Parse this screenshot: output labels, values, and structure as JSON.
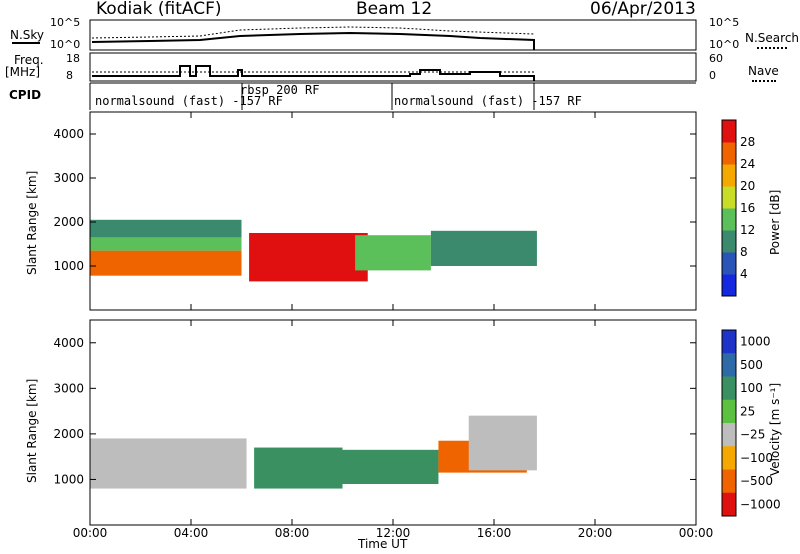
{
  "header": {
    "station": "Kodiak (fitACF)",
    "beam": "Beam 12",
    "date": "06/Apr/2013"
  },
  "aux_panels": {
    "nsky_label": "N.Sky",
    "nsky_ticks": [
      "10^5",
      "10^0"
    ],
    "nsearch_label": "N.Search",
    "nsearch_ticks": [
      "10^5",
      "10^0"
    ],
    "freq_label_line1": "Freq.",
    "freq_label_line2": "[MHz]",
    "freq_ticks": [
      "18",
      "8"
    ],
    "nave_label": "Nave",
    "nave_ticks": [
      "60",
      "0"
    ],
    "cpid_label": "CPID",
    "cpid_segments": [
      "normalsound (fast) -157 RF",
      "rbsp 200 RF",
      "normalsound (fast) -157 RF"
    ],
    "cpid_segment_hours": [
      [
        0,
        6.0
      ],
      [
        6.0,
        12.0
      ],
      [
        12.0,
        17.7
      ]
    ]
  },
  "chart_data": [
    {
      "type": "heatmap",
      "panel": "power",
      "xlabel": "Time UT",
      "ylabel": "Slant Range [km]",
      "xlim": [
        0,
        24
      ],
      "ylim": [
        0,
        4500
      ],
      "yticks": [
        1000,
        2000,
        3000,
        4000
      ],
      "xticks": [
        "00:00",
        "04:00",
        "08:00",
        "12:00",
        "16:00",
        "20:00",
        "00:00"
      ],
      "colorbar_label": "Power [dB]",
      "colorbar_ticks": [
        4,
        8,
        12,
        16,
        20,
        24,
        28
      ],
      "colorbar_range": [
        0,
        32
      ],
      "colorbar_colors": [
        "#1428e0",
        "#2a54b8",
        "#3b8a6e",
        "#5bbf5a",
        "#c8dc28",
        "#f5a800",
        "#f06400",
        "#e01010"
      ],
      "data_end_hour": 17.7,
      "regions": [
        {
          "t": [
            0.0,
            6.0
          ],
          "r": [
            780,
            1350
          ],
          "value": 26
        },
        {
          "t": [
            0.0,
            6.0
          ],
          "r": [
            1350,
            1650
          ],
          "value": 14
        },
        {
          "t": [
            0.0,
            6.0
          ],
          "r": [
            1650,
            2050
          ],
          "value": 8
        },
        {
          "t": [
            6.3,
            11.0
          ],
          "r": [
            650,
            1750
          ],
          "value": 28
        },
        {
          "t": [
            10.5,
            13.5
          ],
          "r": [
            900,
            1700
          ],
          "value": 14
        },
        {
          "t": [
            13.5,
            17.7
          ],
          "r": [
            1000,
            1800
          ],
          "value": 10
        }
      ]
    },
    {
      "type": "heatmap",
      "panel": "velocity",
      "xlabel": "Time UT",
      "ylabel": "Slant Range [km]",
      "xlim": [
        0,
        24
      ],
      "ylim": [
        0,
        4500
      ],
      "yticks": [
        1000,
        2000,
        3000,
        4000
      ],
      "xticks": [
        "00:00",
        "04:00",
        "08:00",
        "12:00",
        "16:00",
        "20:00",
        "00:00"
      ],
      "colorbar_label": "Velocity [m s⁻¹]",
      "colorbar_ticks": [
        "1000",
        "500",
        "100",
        "25",
        "−25",
        "−100",
        "−500",
        "−1000"
      ],
      "colorbar_colors": [
        "#2033c8",
        "#2f6aa8",
        "#3a9060",
        "#5cc040",
        "#bdbdbd",
        "#f5a800",
        "#f06400",
        "#e01010"
      ],
      "data_end_hour": 17.7,
      "regions": [
        {
          "t": [
            0.0,
            6.2
          ],
          "r": [
            800,
            1900
          ],
          "value": 0
        },
        {
          "t": [
            6.5,
            10.0
          ],
          "r": [
            800,
            1700
          ],
          "value": 300
        },
        {
          "t": [
            10.0,
            13.8
          ],
          "r": [
            900,
            1650
          ],
          "value": 100
        },
        {
          "t": [
            13.8,
            17.3
          ],
          "r": [
            1150,
            1850
          ],
          "value": -200
        },
        {
          "t": [
            15.0,
            17.7
          ],
          "r": [
            1200,
            2400
          ],
          "value": 0
        }
      ]
    }
  ]
}
